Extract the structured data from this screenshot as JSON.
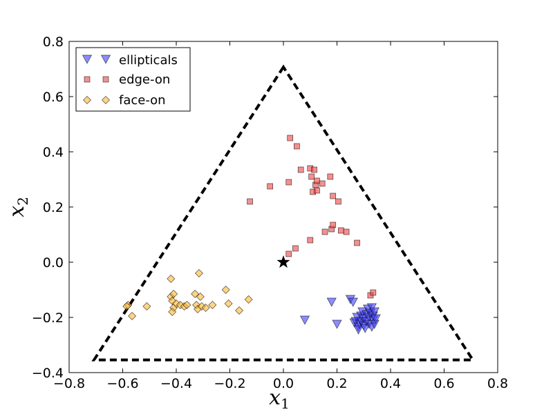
{
  "chart_data": {
    "type": "scatter",
    "title": "",
    "xlabel": "x1",
    "ylabel": "x2",
    "xlabel_main": "x",
    "xlabel_sub": "1",
    "ylabel_main": "x",
    "ylabel_sub": "2",
    "xlim": [
      -0.8,
      0.8
    ],
    "ylim": [
      -0.4,
      0.8
    ],
    "xticks": [
      -0.8,
      -0.6,
      -0.4,
      -0.2,
      0.0,
      0.2,
      0.4,
      0.6,
      0.8
    ],
    "yticks": [
      -0.4,
      -0.2,
      0.0,
      0.2,
      0.4,
      0.6,
      0.8
    ],
    "xtick_labels": [
      "−0.8",
      "−0.6",
      "−0.4",
      "−0.2",
      "0.0",
      "0.2",
      "0.4",
      "0.6",
      "0.8"
    ],
    "ytick_labels": [
      "−0.4",
      "−0.2",
      "0.0",
      "0.2",
      "0.4",
      "0.6",
      "0.8"
    ],
    "grid": false,
    "legend_position": "top-left",
    "triangle": {
      "style": "dashed",
      "color": "#000000",
      "vertices": [
        [
          0.0,
          0.707
        ],
        [
          -0.707,
          -0.354
        ],
        [
          0.707,
          -0.354
        ]
      ]
    },
    "center_marker": {
      "shape": "star",
      "color": "#000000",
      "x": 0.0,
      "y": 0.0
    },
    "series": [
      {
        "name": "ellipticals",
        "marker": "triangle-down",
        "color": "#4040ff",
        "points": [
          [
            0.08,
            -0.21
          ],
          [
            0.18,
            -0.145
          ],
          [
            0.2,
            -0.225
          ],
          [
            0.25,
            -0.135
          ],
          [
            0.26,
            -0.145
          ],
          [
            0.265,
            -0.22
          ],
          [
            0.27,
            -0.215
          ],
          [
            0.275,
            -0.2
          ],
          [
            0.28,
            -0.235
          ],
          [
            0.28,
            -0.245
          ],
          [
            0.285,
            -0.225
          ],
          [
            0.29,
            -0.215
          ],
          [
            0.29,
            -0.195
          ],
          [
            0.295,
            -0.18
          ],
          [
            0.3,
            -0.23
          ],
          [
            0.3,
            -0.205
          ],
          [
            0.305,
            -0.24
          ],
          [
            0.31,
            -0.19
          ],
          [
            0.31,
            -0.215
          ],
          [
            0.315,
            -0.17
          ],
          [
            0.32,
            -0.2
          ],
          [
            0.32,
            -0.225
          ],
          [
            0.325,
            -0.185
          ],
          [
            0.33,
            -0.235
          ],
          [
            0.33,
            -0.165
          ],
          [
            0.335,
            -0.21
          ],
          [
            0.335,
            -0.195
          ],
          [
            0.34,
            -0.225
          ],
          [
            0.34,
            -0.18
          ],
          [
            0.345,
            -0.205
          ]
        ]
      },
      {
        "name": "edge-on",
        "marker": "square",
        "color": "#ee4444",
        "points": [
          [
            -0.125,
            0.22
          ],
          [
            -0.05,
            0.275
          ],
          [
            0.02,
            0.29
          ],
          [
            0.025,
            0.45
          ],
          [
            0.05,
            0.42
          ],
          [
            0.065,
            0.335
          ],
          [
            0.1,
            0.34
          ],
          [
            0.105,
            0.31
          ],
          [
            0.11,
            0.255
          ],
          [
            0.115,
            0.335
          ],
          [
            0.12,
            0.28
          ],
          [
            0.125,
            0.295
          ],
          [
            0.125,
            0.26
          ],
          [
            0.145,
            0.285
          ],
          [
            0.175,
            0.31
          ],
          [
            0.185,
            0.24
          ],
          [
            0.205,
            0.22
          ],
          [
            0.02,
            0.03
          ],
          [
            0.045,
            0.05
          ],
          [
            0.1,
            0.08
          ],
          [
            0.155,
            0.11
          ],
          [
            0.18,
            0.12
          ],
          [
            0.185,
            0.135
          ],
          [
            0.215,
            0.115
          ],
          [
            0.235,
            0.11
          ],
          [
            0.275,
            0.07
          ],
          [
            0.325,
            -0.12
          ],
          [
            0.335,
            -0.11
          ]
        ]
      },
      {
        "name": "face-on",
        "marker": "diamond",
        "color": "#ffb732",
        "points": [
          [
            -0.58,
            -0.155
          ],
          [
            -0.585,
            -0.16
          ],
          [
            -0.565,
            -0.195
          ],
          [
            -0.51,
            -0.16
          ],
          [
            -0.42,
            -0.06
          ],
          [
            -0.42,
            -0.125
          ],
          [
            -0.415,
            -0.14
          ],
          [
            -0.41,
            -0.115
          ],
          [
            -0.41,
            -0.165
          ],
          [
            -0.415,
            -0.18
          ],
          [
            -0.4,
            -0.15
          ],
          [
            -0.385,
            -0.155
          ],
          [
            -0.37,
            -0.16
          ],
          [
            -0.36,
            -0.155
          ],
          [
            -0.33,
            -0.115
          ],
          [
            -0.325,
            -0.155
          ],
          [
            -0.32,
            -0.17
          ],
          [
            -0.315,
            -0.04
          ],
          [
            -0.31,
            -0.125
          ],
          [
            -0.305,
            -0.16
          ],
          [
            -0.29,
            -0.165
          ],
          [
            -0.265,
            -0.155
          ],
          [
            -0.215,
            -0.1
          ],
          [
            -0.205,
            -0.15
          ],
          [
            -0.165,
            -0.175
          ],
          [
            -0.13,
            -0.135
          ]
        ]
      }
    ]
  }
}
